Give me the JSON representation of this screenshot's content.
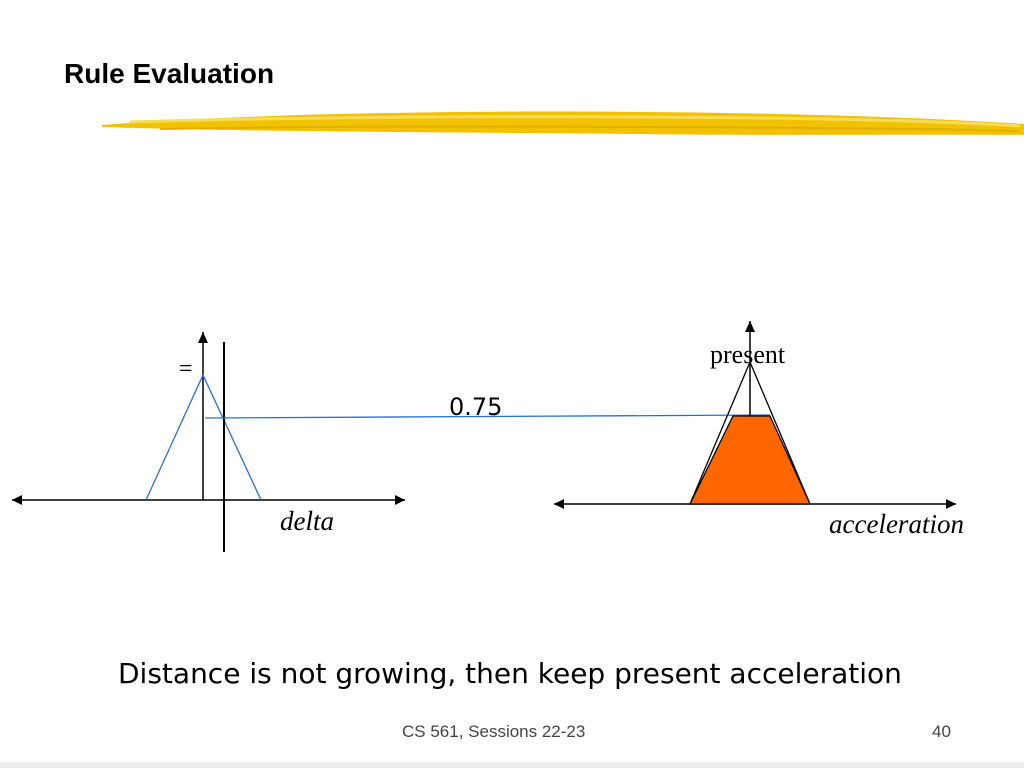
{
  "slide": {
    "title": "Rule Evaluation",
    "caption": "Distance is not growing, then keep present acceleration",
    "footer_course": "CS 561,  Sessions 22-23",
    "page_number": "40"
  },
  "diagram": {
    "left_plot": {
      "axis_label": "delta",
      "set_label": "="
    },
    "right_plot": {
      "axis_label": "acceleration",
      "set_label": "present"
    },
    "firing_strength": "0.75",
    "colors": {
      "highlight_fill": "#ff6600",
      "membership_line": "#2a6fd6",
      "underline_brush": "#f2c200"
    }
  }
}
